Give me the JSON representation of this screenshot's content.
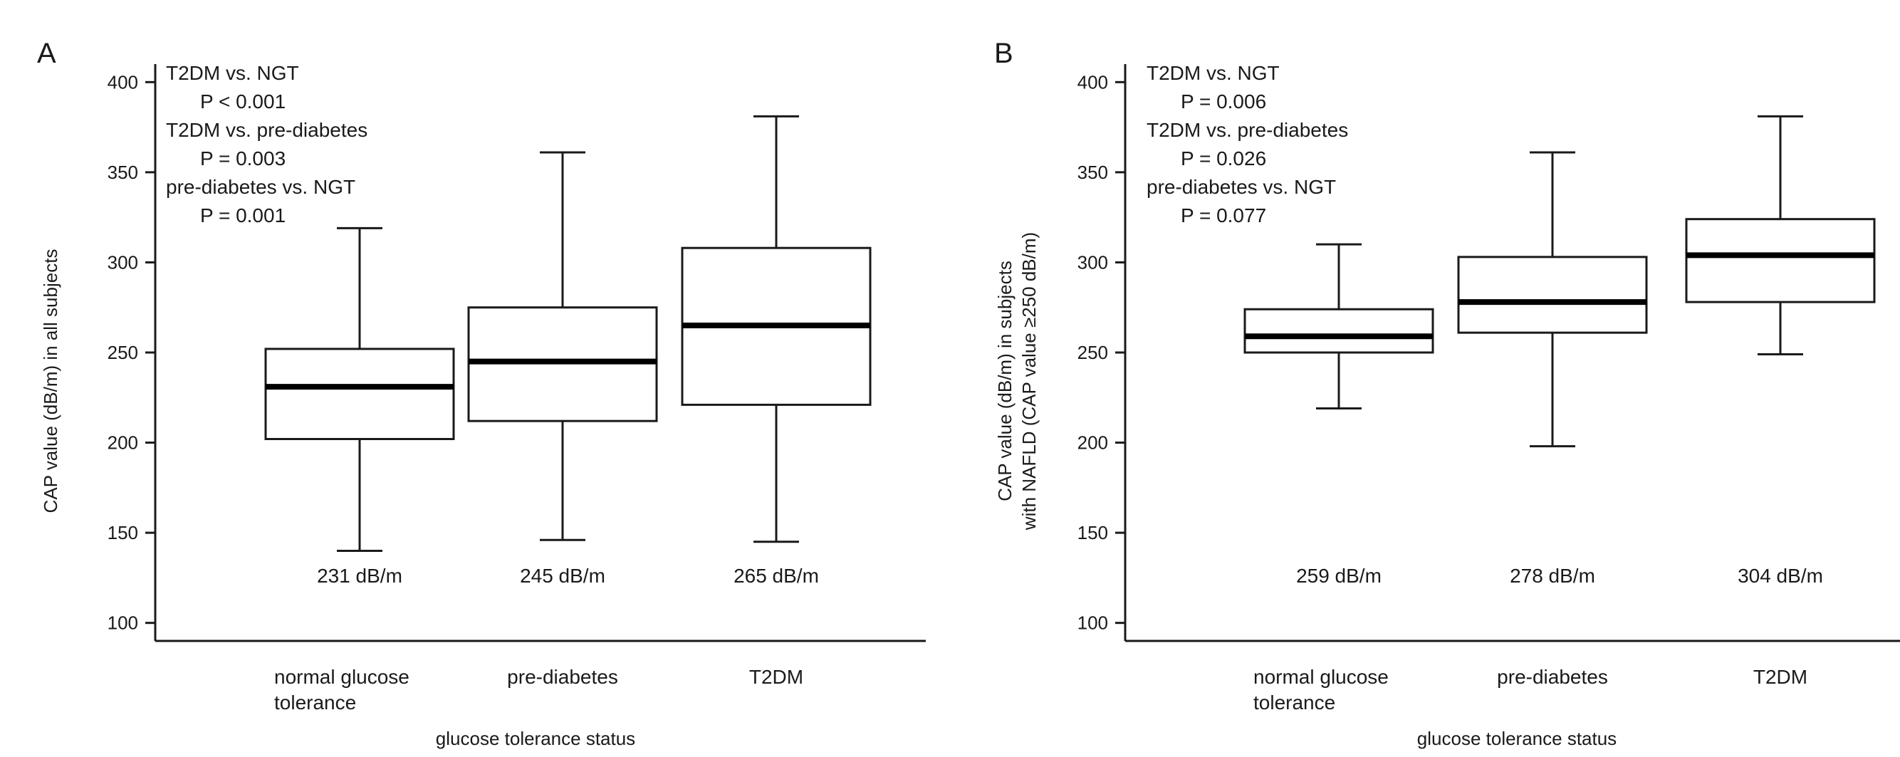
{
  "chart_data": [
    {
      "panel_letter": "A",
      "type": "box",
      "xlabel": "glucose tolerance status",
      "ylabel": "CAP value (dB/m) in all subjects",
      "ylabel_lines": [
        "CAP value (dB/m) in all subjects"
      ],
      "ylim": [
        90,
        410
      ],
      "yticks": [
        100,
        150,
        200,
        250,
        300,
        350,
        400
      ],
      "categories": [
        {
          "lines": [
            "normal glucose",
            "tolerance"
          ],
          "name": "normal glucose tolerance"
        },
        {
          "lines": [
            "pre-diabetes"
          ],
          "name": "pre-diabetes"
        },
        {
          "lines": [
            "T2DM"
          ],
          "name": "T2DM"
        }
      ],
      "boxes": [
        {
          "whisker_low": 140,
          "q1": 202,
          "median": 231,
          "q3": 252,
          "whisker_high": 319
        },
        {
          "whisker_low": 146,
          "q1": 212,
          "median": 245,
          "q3": 275,
          "whisker_high": 361
        },
        {
          "whisker_low": 145,
          "q1": 221,
          "median": 265,
          "q3": 308,
          "whisker_high": 381
        }
      ],
      "median_labels": [
        "231 dB/m",
        "245 dB/m",
        "265 dB/m"
      ],
      "annotations": [
        {
          "text": "T2DM vs. NGT",
          "indent": false
        },
        {
          "text": "P < 0.001",
          "indent": true
        },
        {
          "text": "T2DM vs. pre-diabetes",
          "indent": false
        },
        {
          "text": "P = 0.003",
          "indent": true
        },
        {
          "text": "pre-diabetes vs. NGT",
          "indent": false
        },
        {
          "text": "P = 0.001",
          "indent": true
        }
      ]
    },
    {
      "panel_letter": "B",
      "type": "box",
      "xlabel": "glucose tolerance status",
      "ylabel": "CAP value (dB/m) in subjects with NAFLD (CAP value ≥250 dB/m)",
      "ylabel_lines": [
        "CAP value (dB/m) in subjects",
        "with NAFLD (CAP value ≥250 dB/m)"
      ],
      "ylim": [
        90,
        410
      ],
      "yticks": [
        100,
        150,
        200,
        250,
        300,
        350,
        400
      ],
      "categories": [
        {
          "lines": [
            "normal glucose",
            "tolerance"
          ],
          "name": "normal glucose tolerance"
        },
        {
          "lines": [
            "pre-diabetes"
          ],
          "name": "pre-diabetes"
        },
        {
          "lines": [
            "T2DM"
          ],
          "name": "T2DM"
        }
      ],
      "boxes": [
        {
          "whisker_low": 219,
          "q1": 250,
          "median": 259,
          "q3": 274,
          "whisker_high": 310
        },
        {
          "whisker_low": 198,
          "q1": 261,
          "median": 278,
          "q3": 303,
          "whisker_high": 361
        },
        {
          "whisker_low": 249,
          "q1": 278,
          "median": 304,
          "q3": 324,
          "whisker_high": 381
        }
      ],
      "median_labels": [
        "259 dB/m",
        "278 dB/m",
        "304 dB/m"
      ],
      "annotations": [
        {
          "text": "T2DM vs. NGT",
          "indent": false
        },
        {
          "text": "P = 0.006",
          "indent": true
        },
        {
          "text": "T2DM vs. pre-diabetes",
          "indent": false
        },
        {
          "text": "P = 0.026",
          "indent": true
        },
        {
          "text": "pre-diabetes vs. NGT",
          "indent": false
        },
        {
          "text": "P = 0.077",
          "indent": true
        }
      ]
    }
  ]
}
